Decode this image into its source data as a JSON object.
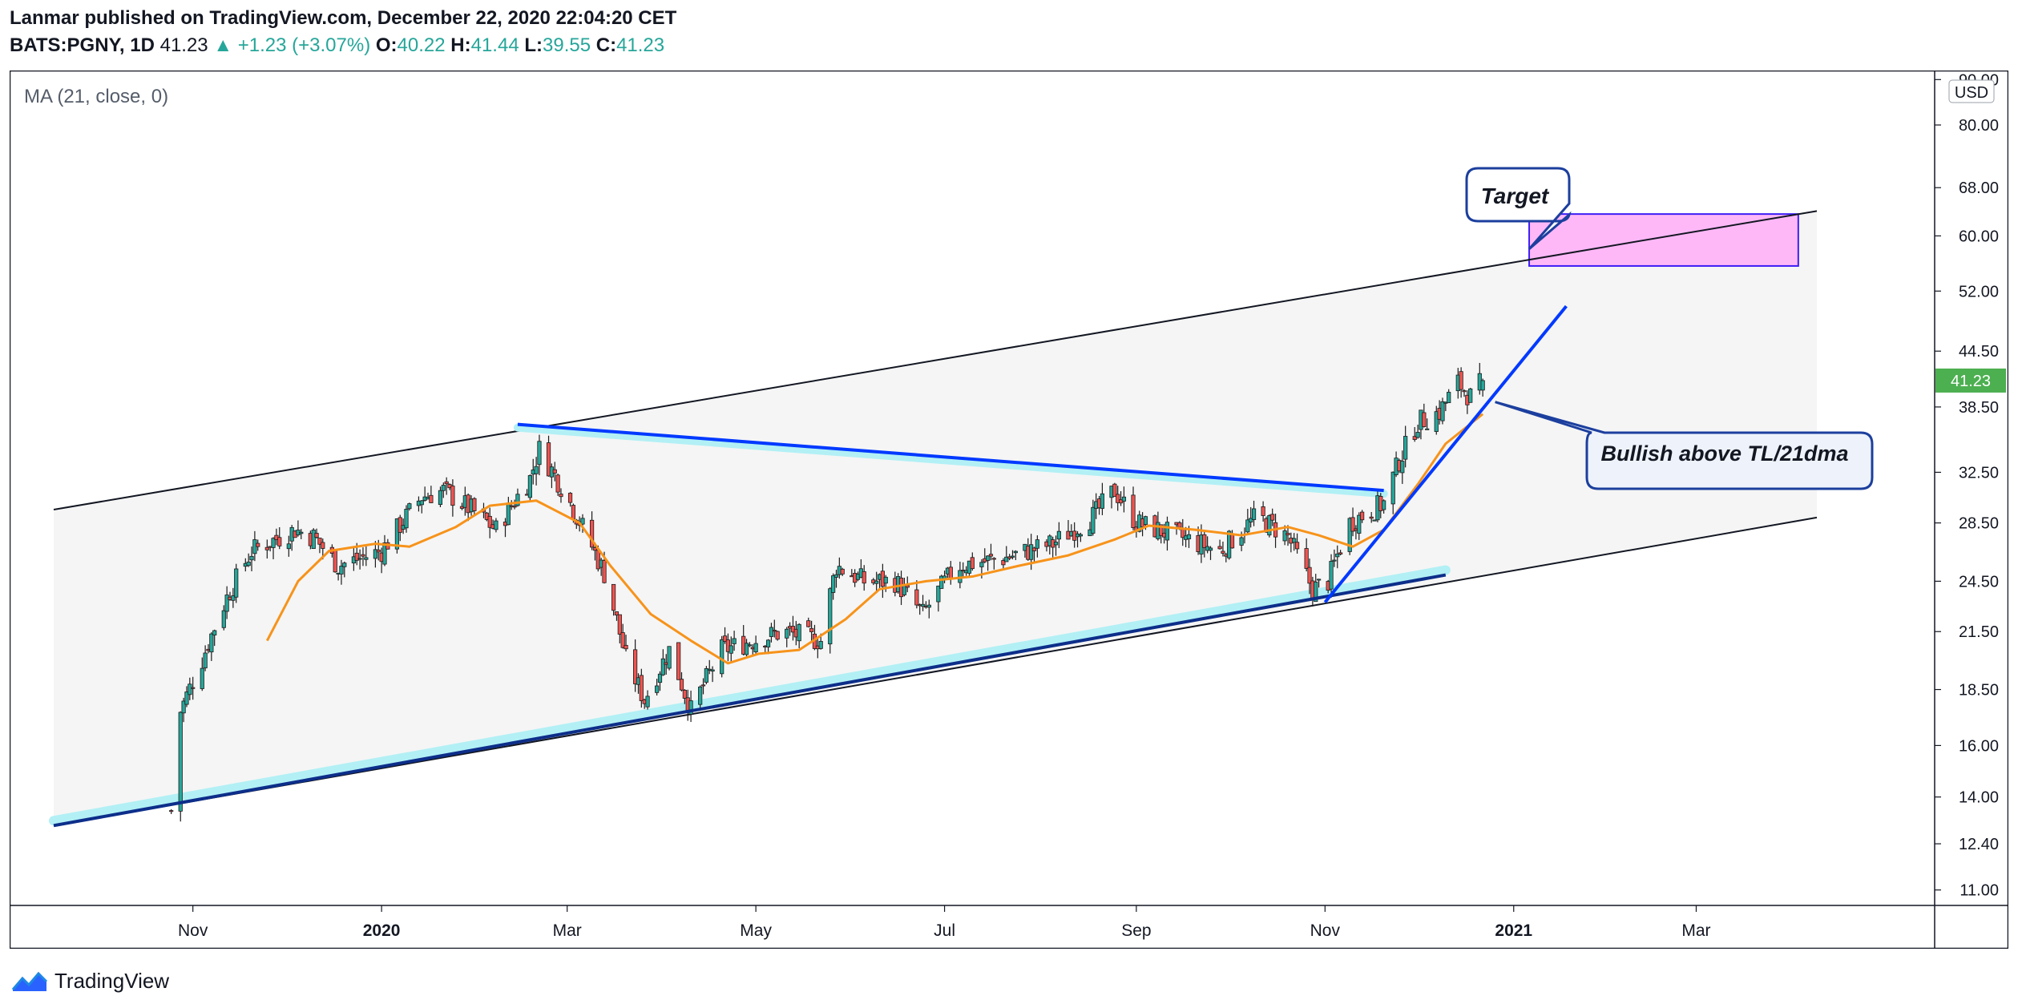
{
  "header": {
    "published_line": "Lanmar published on TradingView.com, December 22, 2020 22:04:20 CET",
    "symbol": "BATS:PGNY, 1D",
    "last": "41.23",
    "change": "▲ +1.23 (+3.07%)",
    "o_label": "O:",
    "o_val": "40.22",
    "h_label": "H:",
    "h_val": "41.44",
    "l_label": "L:",
    "l_val": "39.55",
    "c_label": "C:",
    "c_val": "41.23"
  },
  "indicator_label": "MA (21, close, 0)",
  "currency": "USD",
  "last_price_tag": "41.23",
  "footer": {
    "brand": "TradingView"
  },
  "colors": {
    "up": "#26a69a",
    "down": "#ef5350",
    "ma": "#f7931a",
    "trendline": "#0039ff",
    "trendline_glow": "#b2f0f5",
    "support": "#0d2e8a",
    "target_fill": "#ffb8f7",
    "target_border": "#3c1ef5",
    "price_tag": "#4caf50"
  },
  "annotations": {
    "target": "Target",
    "bullish": "Bullish above TL/21dma"
  },
  "chart_data": {
    "type": "candlestick",
    "scale": "log",
    "ylim": [
      10.7,
      91.0
    ],
    "y_ticks": [
      "11.00",
      "12.40",
      "14.00",
      "16.00",
      "18.50",
      "21.50",
      "24.50",
      "28.50",
      "32.50",
      "38.50",
      "44.50",
      "52.00",
      "60.00",
      "68.00",
      "80.00",
      "90.00"
    ],
    "x_ticks": [
      {
        "label": "Nov",
        "date": "2019-11-01",
        "bold": false
      },
      {
        "label": "2020",
        "date": "2020-01-01",
        "bold": true
      },
      {
        "label": "Mar",
        "date": "2020-03-01",
        "bold": false
      },
      {
        "label": "May",
        "date": "2020-05-01",
        "bold": false
      },
      {
        "label": "Jul",
        "date": "2020-07-01",
        "bold": false
      },
      {
        "label": "Sep",
        "date": "2020-09-01",
        "bold": false
      },
      {
        "label": "Nov",
        "date": "2020-11-01",
        "bold": false
      },
      {
        "label": "2021",
        "date": "2021-01-01",
        "bold": true
      },
      {
        "label": "Mar",
        "date": "2021-03-01",
        "bold": false
      }
    ],
    "x_range": [
      "2019-09-17",
      "2021-04-09"
    ],
    "price_path": [
      [
        "2019-10-25",
        13.5
      ],
      [
        "2019-10-28",
        17.5
      ],
      [
        "2019-11-04",
        20.0
      ],
      [
        "2019-11-12",
        23.5
      ],
      [
        "2019-11-20",
        26.5
      ],
      [
        "2019-12-04",
        28.0
      ],
      [
        "2019-12-10",
        27.5
      ],
      [
        "2019-12-18",
        25.5
      ],
      [
        "2020-01-01",
        26.5
      ],
      [
        "2020-01-14",
        30.5
      ],
      [
        "2020-01-21",
        31.0
      ],
      [
        "2020-01-30",
        29.5
      ],
      [
        "2020-02-07",
        28.0
      ],
      [
        "2020-02-18",
        32.0
      ],
      [
        "2020-02-21",
        34.5
      ],
      [
        "2020-03-02",
        30.0
      ],
      [
        "2020-03-13",
        25.0
      ],
      [
        "2020-03-20",
        20.0
      ],
      [
        "2020-03-26",
        18.0
      ],
      [
        "2020-04-03",
        20.5
      ],
      [
        "2020-04-10",
        17.5
      ],
      [
        "2020-04-20",
        20.5
      ],
      [
        "2020-04-30",
        21.0
      ],
      [
        "2020-05-10",
        21.5
      ],
      [
        "2020-05-22",
        21.0
      ],
      [
        "2020-05-27",
        25.5
      ],
      [
        "2020-06-05",
        24.5
      ],
      [
        "2020-06-15",
        24.5
      ],
      [
        "2020-06-24",
        22.5
      ],
      [
        "2020-07-05",
        25.5
      ],
      [
        "2020-07-20",
        26.0
      ],
      [
        "2020-08-05",
        27.0
      ],
      [
        "2020-08-18",
        29.0
      ],
      [
        "2020-08-25",
        31.0
      ],
      [
        "2020-09-01",
        28.5
      ],
      [
        "2020-09-15",
        27.5
      ],
      [
        "2020-09-28",
        26.5
      ],
      [
        "2020-10-10",
        29.0
      ],
      [
        "2020-10-20",
        27.5
      ],
      [
        "2020-10-28",
        24.0
      ],
      [
        "2020-11-02",
        24.5
      ],
      [
        "2020-11-09",
        28.5
      ],
      [
        "2020-11-20",
        30.0
      ],
      [
        "2020-11-25",
        33.5
      ],
      [
        "2020-12-01",
        37.0
      ],
      [
        "2020-12-08",
        38.0
      ],
      [
        "2020-12-14",
        41.0
      ],
      [
        "2020-12-18",
        39.5
      ],
      [
        "2020-12-22",
        41.23
      ]
    ],
    "last_candle": {
      "date": "2020-12-22",
      "open": 40.22,
      "high": 41.44,
      "low": 39.55,
      "close": 41.23
    },
    "ma21": [
      [
        "2019-11-25",
        21.0
      ],
      [
        "2019-12-05",
        24.5
      ],
      [
        "2019-12-15",
        26.5
      ],
      [
        "2019-12-30",
        27.0
      ],
      [
        "2020-01-10",
        26.8
      ],
      [
        "2020-01-25",
        28.2
      ],
      [
        "2020-02-05",
        29.8
      ],
      [
        "2020-02-20",
        30.2
      ],
      [
        "2020-03-05",
        28.5
      ],
      [
        "2020-03-15",
        25.5
      ],
      [
        "2020-03-28",
        22.5
      ],
      [
        "2020-04-10",
        21.0
      ],
      [
        "2020-04-22",
        19.8
      ],
      [
        "2020-05-02",
        20.3
      ],
      [
        "2020-05-15",
        20.5
      ],
      [
        "2020-05-30",
        22.2
      ],
      [
        "2020-06-10",
        24.0
      ],
      [
        "2020-06-25",
        24.5
      ],
      [
        "2020-07-10",
        24.8
      ],
      [
        "2020-07-25",
        25.5
      ],
      [
        "2020-08-10",
        26.2
      ],
      [
        "2020-08-25",
        27.3
      ],
      [
        "2020-09-05",
        28.3
      ],
      [
        "2020-09-20",
        28.0
      ],
      [
        "2020-10-05",
        27.6
      ],
      [
        "2020-10-20",
        28.2
      ],
      [
        "2020-10-30",
        27.6
      ],
      [
        "2020-11-10",
        26.8
      ],
      [
        "2020-11-20",
        28.0
      ],
      [
        "2020-12-01",
        31.5
      ],
      [
        "2020-12-10",
        35.0
      ],
      [
        "2020-12-22",
        37.8
      ]
    ],
    "channel_upper": [
      [
        "2019-09-17",
        29.5
      ],
      [
        "2021-04-09",
        64.0
      ]
    ],
    "channel_lower": [
      [
        "2019-09-17",
        13.0
      ],
      [
        "2021-04-09",
        28.9
      ]
    ],
    "resistance_line": [
      [
        "2020-02-14",
        36.8
      ],
      [
        "2020-11-20",
        31.0
      ]
    ],
    "support_line": [
      [
        "2019-09-17",
        13.0
      ],
      [
        "2020-12-10",
        24.9
      ]
    ],
    "breakout_line": [
      [
        "2020-11-01",
        23.2
      ],
      [
        "2021-01-18",
        50.0
      ]
    ],
    "target_zone": {
      "from": "2021-01-06",
      "to": "2021-04-03",
      "low": 55.5,
      "high": 63.5
    },
    "target_callout_anchor": {
      "date": "2021-01-06",
      "price": 58.0
    },
    "bullish_callout_anchor": {
      "date": "2020-12-26",
      "price": 39.0
    }
  }
}
